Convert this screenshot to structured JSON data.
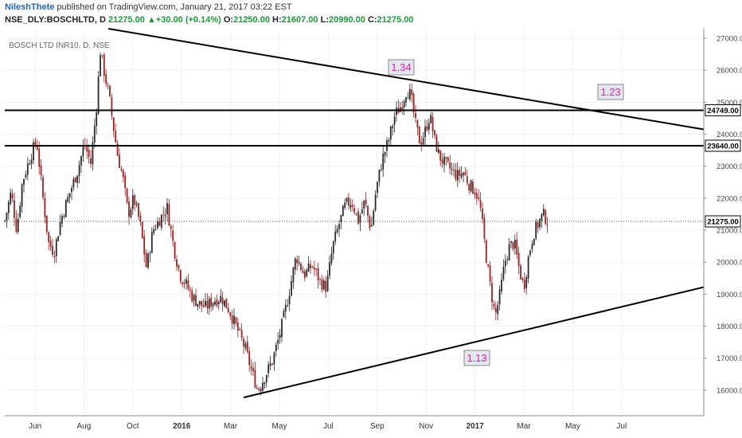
{
  "header": {
    "author": "NileshThete",
    "published": "published on TradingView.com, January 21, 2017 03:22 EST",
    "symbol": "NSE_DLY:BOSCHLTD, D",
    "last": "21275.00",
    "change": "+30.00 (+0.14%)",
    "ohlc": [
      {
        "k": "O:",
        "v": "21250.00"
      },
      {
        "k": "H:",
        "v": "21607.00"
      },
      {
        "k": "L:",
        "v": "20990.00"
      },
      {
        "k": "C:",
        "v": "21275.00"
      }
    ]
  },
  "chart_data": {
    "type": "candlestick",
    "title": "BOSCH LTD INR10, D, NSE",
    "ylim": [
      15200,
      27300
    ],
    "y_ticks": [
      16000,
      17000,
      18000,
      19000,
      20000,
      21000,
      22000,
      23000,
      24000,
      25000,
      26000,
      27000
    ],
    "x_labels": [
      "Jun",
      "Aug",
      "Oct",
      "2016",
      "Mar",
      "May",
      "Jul",
      "Sep",
      "Nov",
      "2017",
      "Mar",
      "May",
      "Jul"
    ],
    "last_price": 21275,
    "horizontal_levels": [
      24749,
      23640
    ],
    "level_labels": [
      "24749.00",
      "23640.00"
    ],
    "last_label": "21275.00",
    "price_path": [
      {
        "x": 0,
        "y": 21300
      },
      {
        "x": 8,
        "y": 22200
      },
      {
        "x": 15,
        "y": 21000
      },
      {
        "x": 22,
        "y": 22500
      },
      {
        "x": 32,
        "y": 23300
      },
      {
        "x": 40,
        "y": 23800
      },
      {
        "x": 48,
        "y": 22000
      },
      {
        "x": 55,
        "y": 20600
      },
      {
        "x": 62,
        "y": 20300
      },
      {
        "x": 70,
        "y": 21300
      },
      {
        "x": 82,
        "y": 22200
      },
      {
        "x": 92,
        "y": 22900
      },
      {
        "x": 100,
        "y": 23700
      },
      {
        "x": 108,
        "y": 23100
      },
      {
        "x": 115,
        "y": 24800
      },
      {
        "x": 120,
        "y": 26600
      },
      {
        "x": 126,
        "y": 25800
      },
      {
        "x": 131,
        "y": 25200
      },
      {
        "x": 136,
        "y": 24300
      },
      {
        "x": 142,
        "y": 23300
      },
      {
        "x": 148,
        "y": 22700
      },
      {
        "x": 155,
        "y": 21500
      },
      {
        "x": 162,
        "y": 22000
      },
      {
        "x": 170,
        "y": 21200
      },
      {
        "x": 178,
        "y": 19800
      },
      {
        "x": 186,
        "y": 21000
      },
      {
        "x": 196,
        "y": 21400
      },
      {
        "x": 204,
        "y": 21700
      },
      {
        "x": 212,
        "y": 20500
      },
      {
        "x": 220,
        "y": 19600
      },
      {
        "x": 228,
        "y": 19300
      },
      {
        "x": 236,
        "y": 18900
      },
      {
        "x": 244,
        "y": 18700
      },
      {
        "x": 252,
        "y": 18600
      },
      {
        "x": 262,
        "y": 18800
      },
      {
        "x": 272,
        "y": 18900
      },
      {
        "x": 282,
        "y": 18500
      },
      {
        "x": 292,
        "y": 17900
      },
      {
        "x": 302,
        "y": 17300
      },
      {
        "x": 310,
        "y": 16600
      },
      {
        "x": 318,
        "y": 16000
      },
      {
        "x": 326,
        "y": 16400
      },
      {
        "x": 336,
        "y": 16900
      },
      {
        "x": 346,
        "y": 17800
      },
      {
        "x": 356,
        "y": 18900
      },
      {
        "x": 366,
        "y": 20200
      },
      {
        "x": 376,
        "y": 19600
      },
      {
        "x": 386,
        "y": 19900
      },
      {
        "x": 396,
        "y": 19400
      },
      {
        "x": 404,
        "y": 19200
      },
      {
        "x": 412,
        "y": 20500
      },
      {
        "x": 420,
        "y": 21200
      },
      {
        "x": 428,
        "y": 21800
      },
      {
        "x": 436,
        "y": 21900
      },
      {
        "x": 444,
        "y": 21300
      },
      {
        "x": 452,
        "y": 21900
      },
      {
        "x": 460,
        "y": 21000
      },
      {
        "x": 466,
        "y": 22200
      },
      {
        "x": 474,
        "y": 23200
      },
      {
        "x": 482,
        "y": 23800
      },
      {
        "x": 490,
        "y": 24600
      },
      {
        "x": 498,
        "y": 24900
      },
      {
        "x": 505,
        "y": 25400
      },
      {
        "x": 510,
        "y": 25200
      },
      {
        "x": 516,
        "y": 24300
      },
      {
        "x": 522,
        "y": 23700
      },
      {
        "x": 528,
        "y": 24100
      },
      {
        "x": 534,
        "y": 24600
      },
      {
        "x": 540,
        "y": 23800
      },
      {
        "x": 546,
        "y": 23300
      },
      {
        "x": 552,
        "y": 23100
      },
      {
        "x": 560,
        "y": 22900
      },
      {
        "x": 568,
        "y": 22700
      },
      {
        "x": 576,
        "y": 22800
      },
      {
        "x": 584,
        "y": 22400
      },
      {
        "x": 592,
        "y": 22200
      },
      {
        "x": 598,
        "y": 21600
      },
      {
        "x": 604,
        "y": 20300
      },
      {
        "x": 610,
        "y": 19200
      },
      {
        "x": 616,
        "y": 18300
      },
      {
        "x": 622,
        "y": 19000
      },
      {
        "x": 628,
        "y": 20000
      },
      {
        "x": 634,
        "y": 20500
      },
      {
        "x": 640,
        "y": 20600
      },
      {
        "x": 646,
        "y": 19800
      },
      {
        "x": 652,
        "y": 19200
      },
      {
        "x": 658,
        "y": 20200
      },
      {
        "x": 664,
        "y": 20900
      },
      {
        "x": 670,
        "y": 21200
      },
      {
        "x": 676,
        "y": 21500
      },
      {
        "x": 682,
        "y": 21275
      }
    ],
    "trendlines": [
      {
        "x1": 136,
        "y1": 27300,
        "x2": 884,
        "y2": 24150
      },
      {
        "x1": 306,
        "y1": 15770,
        "x2": 884,
        "y2": 19220
      }
    ],
    "annotations": [
      "1.34",
      "1.23",
      "1.13"
    ]
  },
  "colors": {
    "up": "#2a2a2a",
    "down": "#9e1e1e",
    "grid": "#eef1f4",
    "annotation_text": "#e020b4",
    "annotation_bg": "#e4e7ec"
  }
}
